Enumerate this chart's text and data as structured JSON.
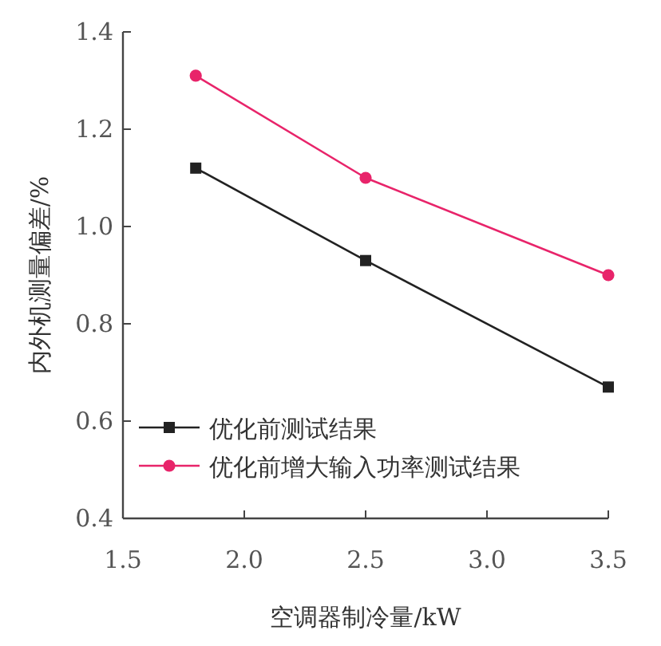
{
  "chart_data": {
    "type": "line",
    "xlabel": "空调器制冷量/kW",
    "ylabel": "内外机测量偏差/%",
    "x": [
      1.8,
      2.5,
      3.5
    ],
    "series": [
      {
        "name": "优化前测试结果",
        "color": "#222222",
        "marker": "square",
        "values": [
          1.12,
          0.93,
          0.67
        ]
      },
      {
        "name": "优化前增大输入功率测试结果",
        "color": "#e8246a",
        "marker": "circle",
        "values": [
          1.31,
          1.1,
          0.9
        ]
      }
    ],
    "xlim": [
      1.5,
      3.5
    ],
    "xticks": [
      1.5,
      {
        "value": 2,
        "label": "2.0"
      },
      2.5,
      {
        "value": 3,
        "label": "3.0"
      },
      3.5
    ],
    "ylim": [
      0.4,
      1.4
    ],
    "yticks": [
      0.4,
      0.6,
      0.8,
      {
        "value": 1,
        "label": "1.0"
      },
      1.2,
      1.4
    ],
    "grid": false,
    "legend": "bottom left"
  }
}
